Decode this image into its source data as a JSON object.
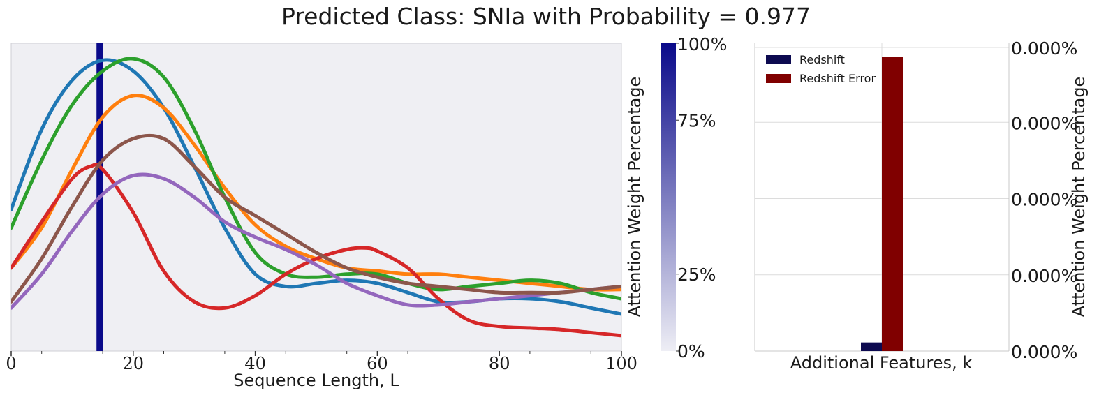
{
  "title": "Predicted Class: SNIa with Probability = 0.977",
  "chart_data": [
    {
      "type": "line",
      "xlabel": "Sequence Length, L",
      "ylabel": "",
      "xlim": [
        0,
        100
      ],
      "ylim": [
        0,
        1
      ],
      "x_ticks": [
        "0",
        "20",
        "40",
        "60",
        "80",
        "100"
      ],
      "grid": false,
      "attention_peak_x": 14.5,
      "series": [
        {
          "color": "#1f77b4",
          "x": [
            0,
            5,
            10,
            15,
            20,
            25,
            30,
            35,
            40,
            45,
            50,
            55,
            60,
            65,
            70,
            75,
            80,
            85,
            90,
            95,
            100
          ],
          "y": [
            0.46,
            0.72,
            0.88,
            0.945,
            0.91,
            0.79,
            0.6,
            0.4,
            0.25,
            0.21,
            0.22,
            0.23,
            0.22,
            0.19,
            0.16,
            0.16,
            0.17,
            0.17,
            0.16,
            0.14,
            0.12
          ]
        },
        {
          "color": "#ff7f0e",
          "x": [
            0,
            5,
            10,
            15,
            20,
            25,
            30,
            35,
            40,
            45,
            50,
            55,
            60,
            65,
            70,
            75,
            80,
            85,
            90,
            95,
            100
          ],
          "y": [
            0.27,
            0.4,
            0.59,
            0.76,
            0.83,
            0.79,
            0.67,
            0.53,
            0.41,
            0.34,
            0.3,
            0.27,
            0.26,
            0.25,
            0.25,
            0.24,
            0.23,
            0.22,
            0.21,
            0.2,
            0.2
          ]
        },
        {
          "color": "#2ca02c",
          "x": [
            0,
            5,
            10,
            15,
            20,
            25,
            30,
            35,
            40,
            45,
            50,
            55,
            60,
            65,
            70,
            75,
            80,
            85,
            90,
            95,
            100
          ],
          "y": [
            0.4,
            0.62,
            0.8,
            0.91,
            0.95,
            0.89,
            0.72,
            0.5,
            0.32,
            0.25,
            0.24,
            0.25,
            0.25,
            0.22,
            0.2,
            0.21,
            0.22,
            0.23,
            0.22,
            0.19,
            0.17
          ]
        },
        {
          "color": "#d62728",
          "x": [
            0,
            5,
            10,
            13,
            15,
            20,
            25,
            30,
            35,
            40,
            45,
            50,
            55,
            58,
            60,
            65,
            70,
            75,
            80,
            85,
            90,
            95,
            100
          ],
          "y": [
            0.27,
            0.42,
            0.56,
            0.6,
            0.59,
            0.45,
            0.26,
            0.16,
            0.14,
            0.18,
            0.25,
            0.3,
            0.33,
            0.335,
            0.325,
            0.27,
            0.17,
            0.1,
            0.08,
            0.075,
            0.07,
            0.06,
            0.05
          ]
        },
        {
          "color": "#9467bd",
          "x": [
            0,
            5,
            10,
            15,
            20,
            25,
            30,
            35,
            40,
            45,
            50,
            55,
            60,
            65,
            70,
            75,
            80,
            85,
            90,
            95,
            100
          ],
          "y": [
            0.14,
            0.25,
            0.39,
            0.51,
            0.57,
            0.56,
            0.5,
            0.42,
            0.37,
            0.33,
            0.28,
            0.22,
            0.18,
            0.15,
            0.15,
            0.16,
            0.17,
            0.18,
            0.19,
            0.2,
            0.21
          ]
        },
        {
          "color": "#8c564b",
          "x": [
            0,
            5,
            10,
            15,
            20,
            25,
            30,
            35,
            40,
            45,
            50,
            55,
            60,
            65,
            70,
            75,
            80,
            85,
            90,
            95,
            100
          ],
          "y": [
            0.16,
            0.3,
            0.47,
            0.62,
            0.69,
            0.69,
            0.6,
            0.5,
            0.44,
            0.38,
            0.32,
            0.27,
            0.24,
            0.22,
            0.21,
            0.2,
            0.19,
            0.19,
            0.19,
            0.2,
            0.21
          ]
        }
      ]
    },
    {
      "type": "colorbar",
      "ylabel": "Attention Weight Percentage",
      "ticks": [
        "0%",
        "25%",
        "75%",
        "100%"
      ],
      "tick_values": [
        0,
        25,
        75,
        100
      ],
      "color_low": "#eeeef5",
      "color_high": "#0a0a8a"
    },
    {
      "type": "bar",
      "xlabel": "Additional Features, k",
      "ylabel": "Attention Weight Percentage",
      "categories": [
        "Redshift",
        "Redshift Error"
      ],
      "values": [
        0.028,
        0.955
      ],
      "ylim": [
        0,
        1
      ],
      "y_ticks": [
        "0.000%",
        "0.000%",
        "0.000%",
        "0.000%",
        "0.000%"
      ],
      "grid": true,
      "legend_position": "top-left",
      "series": [
        {
          "name": "Redshift",
          "color": "#0d0a50"
        },
        {
          "name": "Redshift Error",
          "color": "#800000"
        }
      ]
    }
  ]
}
